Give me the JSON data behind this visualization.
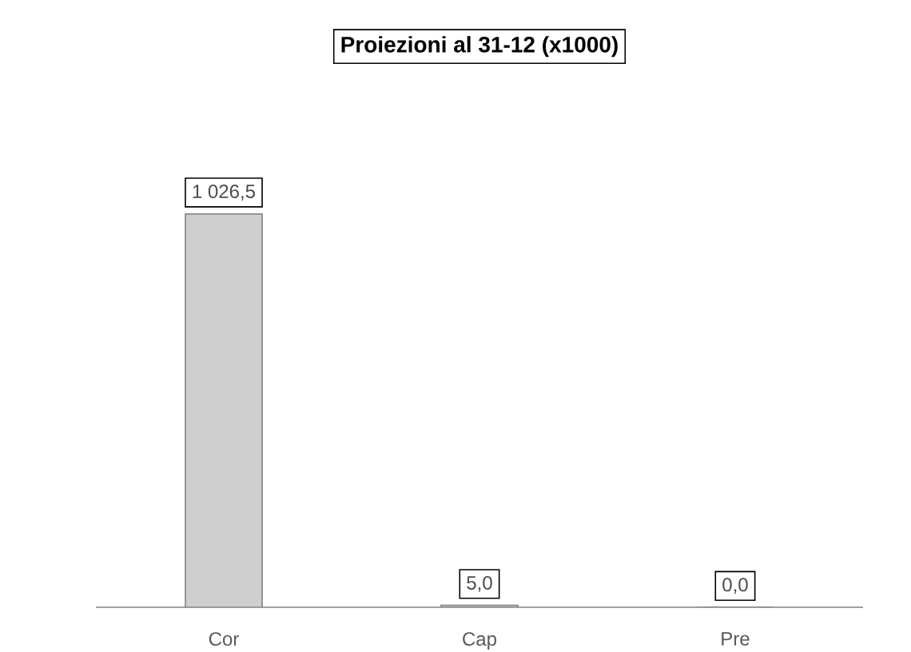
{
  "chart_data": {
    "type": "bar",
    "title": "Proiezioni al 31-12 (x1000)",
    "categories": [
      "Cor",
      "Cap",
      "Pre"
    ],
    "values": [
      1026.5,
      5.0,
      0.0
    ],
    "value_labels": [
      "1 026,5",
      "5,0",
      "0,0"
    ],
    "color": "#cfcfcf"
  }
}
